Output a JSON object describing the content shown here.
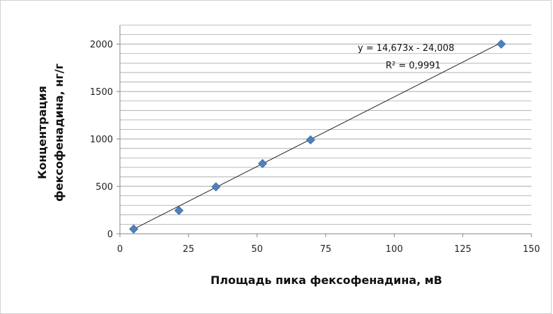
{
  "chart_data": {
    "type": "scatter",
    "title": "",
    "xlabel": "Площадь пика фексофенадина, мВ",
    "ylabel_lines": [
      "Концентрация",
      "фексофенадина, нг/г"
    ],
    "xlim": [
      0,
      150
    ],
    "ylim": [
      0,
      2200
    ],
    "x_ticks": [
      0,
      25,
      50,
      75,
      100,
      125,
      150
    ],
    "y_ticks": [
      0,
      500,
      1000,
      1500,
      2000
    ],
    "grid": "horizontal",
    "marker": "diamond",
    "colors": {
      "marker": "#4f81bd",
      "trendline": "#222222",
      "grid": "#a6a6a6"
    },
    "series": [
      {
        "x": [
          5,
          21.5,
          35,
          52,
          69.5,
          139
        ],
        "y": [
          50,
          245,
          495,
          740,
          990,
          2000
        ]
      }
    ],
    "trendline": {
      "type": "linear",
      "slope": 14.673,
      "intercept": -24.008,
      "x_range": [
        4,
        139
      ],
      "equation": "y = 14,673x - 24,008",
      "r_squared": "R² = 0,9991"
    }
  }
}
